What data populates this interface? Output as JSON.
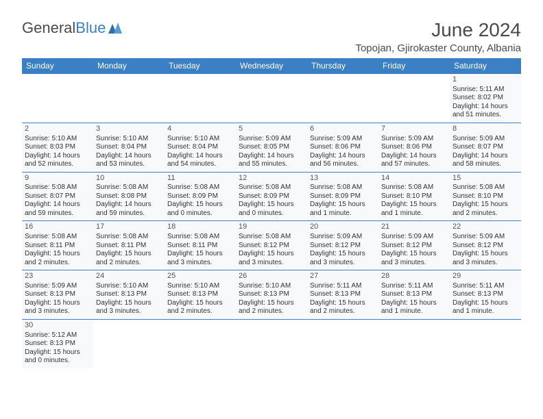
{
  "brand": {
    "name_part1": "General",
    "name_part2": "Blue"
  },
  "title": "June 2024",
  "location": "Topojan, Gjirokaster County, Albania",
  "colors": {
    "header_bg": "#3b7fc4",
    "header_text": "#ffffff",
    "border": "#3b7fc4",
    "cell_bg": "#f7f9fb",
    "page_bg": "#ffffff",
    "text": "#333333",
    "muted": "#4a4a4a"
  },
  "typography": {
    "title_fontsize": 28,
    "location_fontsize": 15,
    "dayheader_fontsize": 12,
    "daynum_fontsize": 11,
    "body_fontsize": 10
  },
  "day_headers": [
    "Sunday",
    "Monday",
    "Tuesday",
    "Wednesday",
    "Thursday",
    "Friday",
    "Saturday"
  ],
  "weeks": [
    [
      null,
      null,
      null,
      null,
      null,
      null,
      {
        "n": "1",
        "sunrise": "5:11 AM",
        "sunset": "8:02 PM",
        "daylight": "14 hours and 51 minutes."
      }
    ],
    [
      {
        "n": "2",
        "sunrise": "5:10 AM",
        "sunset": "8:03 PM",
        "daylight": "14 hours and 52 minutes."
      },
      {
        "n": "3",
        "sunrise": "5:10 AM",
        "sunset": "8:04 PM",
        "daylight": "14 hours and 53 minutes."
      },
      {
        "n": "4",
        "sunrise": "5:10 AM",
        "sunset": "8:04 PM",
        "daylight": "14 hours and 54 minutes."
      },
      {
        "n": "5",
        "sunrise": "5:09 AM",
        "sunset": "8:05 PM",
        "daylight": "14 hours and 55 minutes."
      },
      {
        "n": "6",
        "sunrise": "5:09 AM",
        "sunset": "8:06 PM",
        "daylight": "14 hours and 56 minutes."
      },
      {
        "n": "7",
        "sunrise": "5:09 AM",
        "sunset": "8:06 PM",
        "daylight": "14 hours and 57 minutes."
      },
      {
        "n": "8",
        "sunrise": "5:09 AM",
        "sunset": "8:07 PM",
        "daylight": "14 hours and 58 minutes."
      }
    ],
    [
      {
        "n": "9",
        "sunrise": "5:08 AM",
        "sunset": "8:07 PM",
        "daylight": "14 hours and 59 minutes."
      },
      {
        "n": "10",
        "sunrise": "5:08 AM",
        "sunset": "8:08 PM",
        "daylight": "14 hours and 59 minutes."
      },
      {
        "n": "11",
        "sunrise": "5:08 AM",
        "sunset": "8:09 PM",
        "daylight": "15 hours and 0 minutes."
      },
      {
        "n": "12",
        "sunrise": "5:08 AM",
        "sunset": "8:09 PM",
        "daylight": "15 hours and 0 minutes."
      },
      {
        "n": "13",
        "sunrise": "5:08 AM",
        "sunset": "8:09 PM",
        "daylight": "15 hours and 1 minute."
      },
      {
        "n": "14",
        "sunrise": "5:08 AM",
        "sunset": "8:10 PM",
        "daylight": "15 hours and 1 minute."
      },
      {
        "n": "15",
        "sunrise": "5:08 AM",
        "sunset": "8:10 PM",
        "daylight": "15 hours and 2 minutes."
      }
    ],
    [
      {
        "n": "16",
        "sunrise": "5:08 AM",
        "sunset": "8:11 PM",
        "daylight": "15 hours and 2 minutes."
      },
      {
        "n": "17",
        "sunrise": "5:08 AM",
        "sunset": "8:11 PM",
        "daylight": "15 hours and 2 minutes."
      },
      {
        "n": "18",
        "sunrise": "5:08 AM",
        "sunset": "8:11 PM",
        "daylight": "15 hours and 3 minutes."
      },
      {
        "n": "19",
        "sunrise": "5:08 AM",
        "sunset": "8:12 PM",
        "daylight": "15 hours and 3 minutes."
      },
      {
        "n": "20",
        "sunrise": "5:09 AM",
        "sunset": "8:12 PM",
        "daylight": "15 hours and 3 minutes."
      },
      {
        "n": "21",
        "sunrise": "5:09 AM",
        "sunset": "8:12 PM",
        "daylight": "15 hours and 3 minutes."
      },
      {
        "n": "22",
        "sunrise": "5:09 AM",
        "sunset": "8:12 PM",
        "daylight": "15 hours and 3 minutes."
      }
    ],
    [
      {
        "n": "23",
        "sunrise": "5:09 AM",
        "sunset": "8:13 PM",
        "daylight": "15 hours and 3 minutes."
      },
      {
        "n": "24",
        "sunrise": "5:10 AM",
        "sunset": "8:13 PM",
        "daylight": "15 hours and 3 minutes."
      },
      {
        "n": "25",
        "sunrise": "5:10 AM",
        "sunset": "8:13 PM",
        "daylight": "15 hours and 2 minutes."
      },
      {
        "n": "26",
        "sunrise": "5:10 AM",
        "sunset": "8:13 PM",
        "daylight": "15 hours and 2 minutes."
      },
      {
        "n": "27",
        "sunrise": "5:11 AM",
        "sunset": "8:13 PM",
        "daylight": "15 hours and 2 minutes."
      },
      {
        "n": "28",
        "sunrise": "5:11 AM",
        "sunset": "8:13 PM",
        "daylight": "15 hours and 1 minute."
      },
      {
        "n": "29",
        "sunrise": "5:11 AM",
        "sunset": "8:13 PM",
        "daylight": "15 hours and 1 minute."
      }
    ],
    [
      {
        "n": "30",
        "sunrise": "5:12 AM",
        "sunset": "8:13 PM",
        "daylight": "15 hours and 0 minutes."
      },
      null,
      null,
      null,
      null,
      null,
      null
    ]
  ],
  "labels": {
    "sunrise": "Sunrise: ",
    "sunset": "Sunset: ",
    "daylight": "Daylight: "
  }
}
